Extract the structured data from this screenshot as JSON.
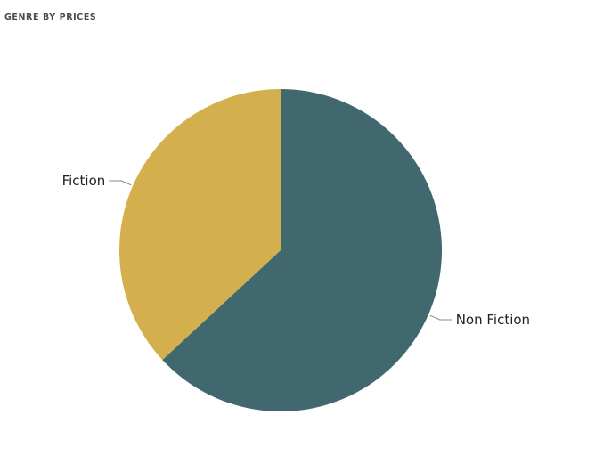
{
  "chart_data": {
    "type": "pie",
    "title": "GENRE BY PRICES",
    "categories": [
      "Non Fiction",
      "Fiction"
    ],
    "values": [
      63.1,
      36.9
    ],
    "colors": [
      "#41686F",
      "#D3B04D"
    ],
    "start_angle_deg": 0,
    "direction": "clockwise",
    "legend": "none"
  }
}
